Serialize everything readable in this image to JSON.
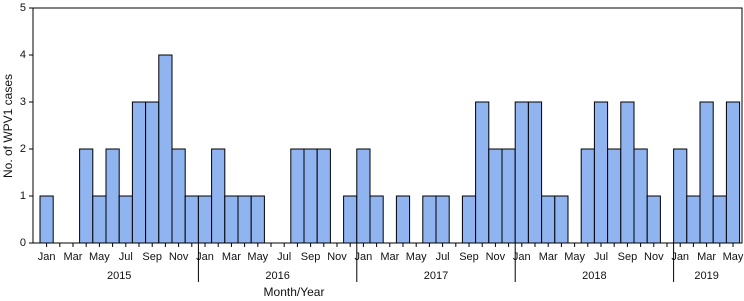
{
  "chart_data": {
    "type": "bar",
    "y_axis_label": "No. of WPV1 cases",
    "x_axis_label": "Month/Year",
    "categories": [
      "Jan",
      null,
      "Mar",
      null,
      "May",
      null,
      "Jul",
      null,
      "Sep",
      null,
      "Nov",
      null,
      "Jan",
      null,
      "Mar",
      null,
      "May",
      null,
      "Jul",
      null,
      "Sep",
      null,
      "Nov",
      null,
      "Jan",
      null,
      "Mar",
      null,
      "May",
      null,
      "Jul",
      null,
      "Sep",
      null,
      "Nov",
      null,
      "Jan",
      null,
      "Mar",
      null,
      "May",
      null,
      "Jul",
      null,
      "Sep",
      null,
      "Nov",
      null,
      "Jan",
      null,
      "Mar",
      null,
      "May"
    ],
    "years": [
      "2015",
      "2016",
      "2017",
      "2018",
      "2019"
    ],
    "values": [
      1,
      0,
      0,
      2,
      1,
      2,
      1,
      3,
      3,
      4,
      2,
      1,
      1,
      2,
      1,
      1,
      1,
      0,
      0,
      2,
      2,
      2,
      0,
      1,
      2,
      1,
      0,
      1,
      0,
      1,
      1,
      0,
      1,
      3,
      2,
      2,
      3,
      3,
      1,
      1,
      0,
      2,
      3,
      2,
      3,
      2,
      1,
      0,
      2,
      1,
      3,
      1,
      3
    ],
    "color": "#8fb4f0",
    "ylim": [
      0,
      5
    ],
    "yticks": [
      0,
      1,
      2,
      3,
      4,
      5
    ],
    "grid": false
  }
}
